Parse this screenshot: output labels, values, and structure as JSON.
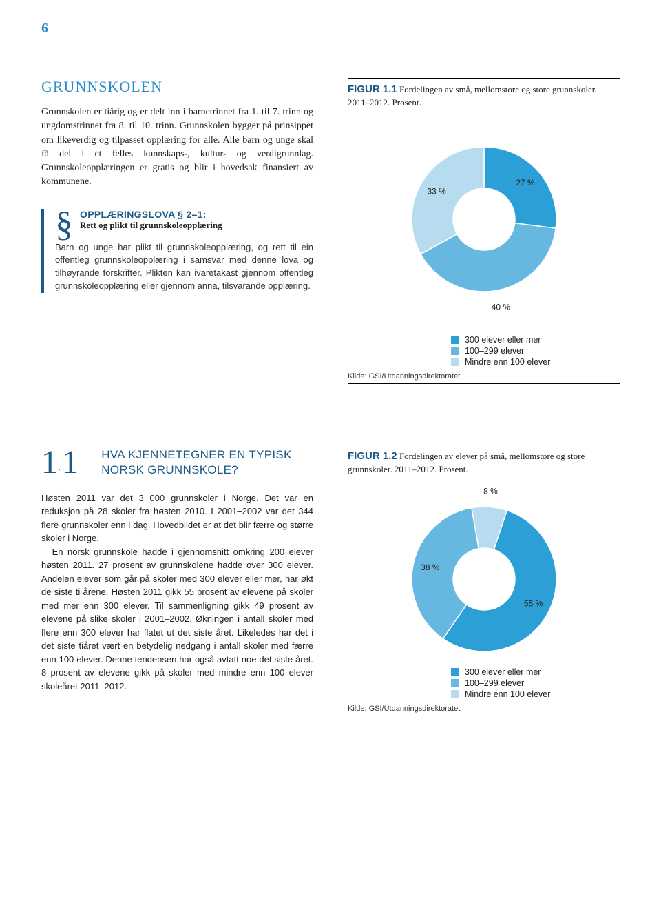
{
  "page_number": "6",
  "colors": {
    "accent": "#2b8ec9",
    "dark_accent": "#1c5a87",
    "c1": "#2ca0d6",
    "c2": "#67b8e0",
    "c3": "#b7dcef",
    "text": "#222222"
  },
  "left": {
    "title": "GRUNNSKOLEN",
    "para": "Grunnskolen er tiårig og er delt inn i barnetrinnet fra 1. til 7. trinn og ungdomstrinnet fra 8. til 10. trinn. Grunnskolen bygger på prinsippet om likeverdig og tilpasset opplæring for alle. Alle barn og unge skal få del i et felles kunnskaps-, kultur- og verdigrunnlag. Grunnskoleopplæringen er gratis og blir i hovedsak finansiert av kommunene."
  },
  "law": {
    "symbol": "§",
    "title": "OPPLÆRINGSLOVA § 2–1:",
    "sub": "Rett og plikt til grunnskoleopplæring",
    "body": "Barn og unge har plikt til grunnskoleopplæring, og rett til ein offentleg grunnskoleopplæring i samsvar med denne lova og tilhøyrande forskrifter. Plikten kan ivaretakast gjennom offentleg grunnskoleopplæring eller gjennom anna, tilsvarande opplæring."
  },
  "fig1": {
    "label": "FIGUR 1.1",
    "desc": "Fordelingen av små, mellomstore og store grunnskoler. 2011–2012. Prosent.",
    "slices": [
      {
        "label": "27 %",
        "value": 27,
        "color": "#2ca0d6"
      },
      {
        "label": "40 %",
        "value": 40,
        "color": "#67b8e0"
      },
      {
        "label": "33 %",
        "value": 33,
        "color": "#b7dcef"
      }
    ],
    "legend": [
      {
        "label": "300 elever eller mer",
        "color": "#2ca0d6"
      },
      {
        "label": "100–299 elever",
        "color": "#67b8e0"
      },
      {
        "label": "Mindre enn 100 elever",
        "color": "#b7dcef"
      }
    ],
    "kilde": "Kilde: GSI/Utdanningsdirektoratet"
  },
  "sec11": {
    "num1": "1",
    "num2": "1",
    "heading": "HVA KJENNETEGNER EN TYPISK NORSK GRUNNSKOLE?",
    "body_a": "Høsten 2011 var det 3 000 grunnskoler i Norge. Det var en reduksjon på 28 skoler fra høsten 2010. I 2001–2002 var det 344 flere grunnskoler enn i dag. Hovedbildet er at det blir færre og større skoler i Norge.",
    "body_b": "En norsk grunnskole hadde i gjennomsnitt omkring 200 elever høsten 2011. 27 prosent av grunnskolene hadde over 300 elever. Andelen elever som går på skoler med 300 elever eller mer, har økt de siste ti årene. Høsten 2011 gikk 55 prosent av elevene på skoler med mer enn 300 elever. Til sammenligning gikk 49 prosent av elevene på slike skoler i 2001–2002. Økningen i antall skoler med flere enn 300 elever har flatet ut det siste året. Likeledes har det i det siste tiåret vært en betydelig nedgang i antall skoler med færre enn 100 elever. Denne tendensen har også avtatt noe det siste året. 8 prosent av elevene gikk på skoler med mindre enn 100 elever skoleåret 2011–2012."
  },
  "fig2": {
    "label": "FIGUR 1.2",
    "desc": "Fordelingen av elever på små, mellomstore og store grunnskoler. 2011–2012. Prosent.",
    "slices": [
      {
        "label": "8 %",
        "value": 8,
        "color": "#b7dcef"
      },
      {
        "label": "55 %",
        "value": 55,
        "color": "#2ca0d6"
      },
      {
        "label": "38 %",
        "value": 38,
        "color": "#67b8e0"
      }
    ],
    "legend": [
      {
        "label": "300 elever eller mer",
        "color": "#2ca0d6"
      },
      {
        "label": "100–299 elever",
        "color": "#67b8e0"
      },
      {
        "label": "Mindre enn 100 elever",
        "color": "#b7dcef"
      }
    ],
    "kilde": "Kilde: GSI/Utdanningsdirektoratet"
  }
}
